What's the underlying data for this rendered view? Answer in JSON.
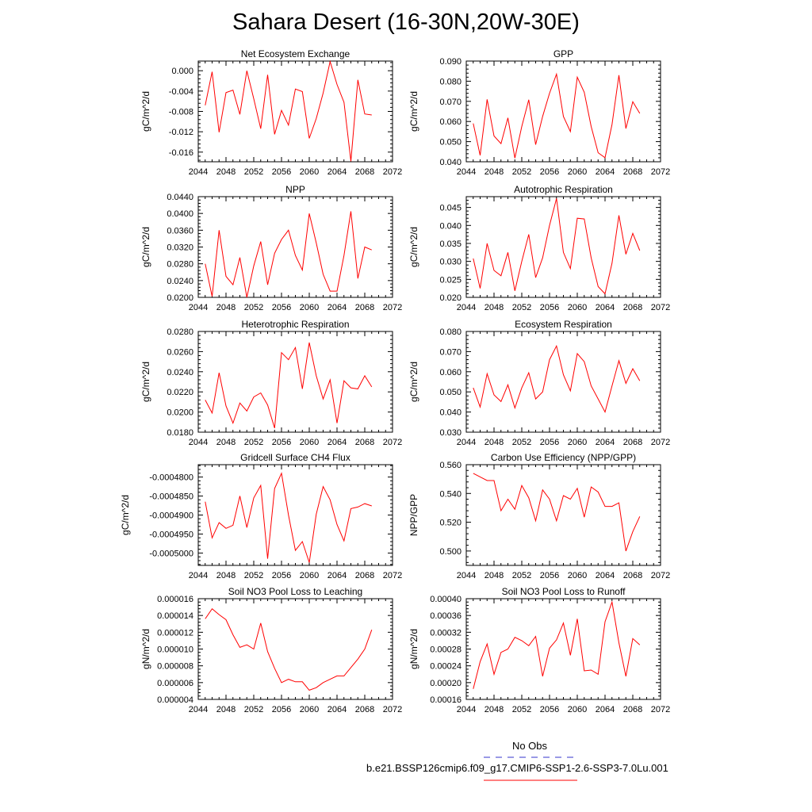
{
  "title": "Sahara Desert (16-30N,20W-30E)",
  "legend": {
    "obs_label": "No Obs",
    "obs_color": "#3333cc",
    "run_label": "b.e21.BSSP126cmip6.f09_g17.CMIP6-SSP1-2.6-SSP3-7.0Lu.001",
    "run_color": "#ff0000"
  },
  "chart_data": [
    {
      "type": "line",
      "title": "Net Ecosystem Exchange",
      "ylabel": "gC/m^2/d",
      "xlim": [
        2044,
        2072
      ],
      "xticks": [
        2044,
        2048,
        2052,
        2056,
        2060,
        2064,
        2068,
        2072
      ],
      "ylim": [
        -0.0179,
        0.0019
      ],
      "yticks": [
        0.0,
        -0.004,
        -0.008,
        -0.012,
        -0.016
      ],
      "ytick_labels": [
        "0.000",
        "-0.004",
        "-0.008",
        "-0.012",
        "-0.016"
      ],
      "color": "#ff0000",
      "x": [
        2045,
        2046,
        2047,
        2048,
        2049,
        2050,
        2051,
        2052,
        2053,
        2054,
        2055,
        2056,
        2057,
        2058,
        2059,
        2060,
        2061,
        2062,
        2063,
        2064,
        2065,
        2066,
        2067,
        2068,
        2069
      ],
      "values": [
        -0.0068,
        -0.0002,
        -0.0121,
        -0.0043,
        -0.0038,
        -0.0086,
        0.0,
        -0.0055,
        -0.0114,
        -0.0008,
        -0.0125,
        -0.0078,
        -0.0107,
        -0.0036,
        -0.0041,
        -0.0133,
        -0.0094,
        -0.0044,
        0.0018,
        -0.0027,
        -0.0062,
        -0.0178,
        -0.0018,
        -0.0085,
        -0.0087
      ]
    },
    {
      "type": "line",
      "title": "GPP",
      "ylabel": "gC/m^2/d",
      "xlim": [
        2044,
        2072
      ],
      "xticks": [
        2044,
        2048,
        2052,
        2056,
        2060,
        2064,
        2068,
        2072
      ],
      "ylim": [
        0.04,
        0.09
      ],
      "yticks": [
        0.04,
        0.05,
        0.06,
        0.07,
        0.08,
        0.09
      ],
      "ytick_labels": [
        "0.040",
        "0.050",
        "0.060",
        "0.070",
        "0.080",
        "0.090"
      ],
      "color": "#ff0000",
      "x": [
        2045,
        2046,
        2047,
        2048,
        2049,
        2050,
        2051,
        2052,
        2053,
        2054,
        2055,
        2056,
        2057,
        2058,
        2059,
        2060,
        2061,
        2062,
        2063,
        2064,
        2065,
        2066,
        2067,
        2068,
        2069
      ],
      "values": [
        0.059,
        0.0432,
        0.071,
        0.0528,
        0.049,
        0.0618,
        0.0418,
        0.0575,
        0.0708,
        0.0485,
        0.0625,
        0.074,
        0.0835,
        0.0625,
        0.055,
        0.082,
        0.0745,
        0.0575,
        0.0445,
        0.042,
        0.0585,
        0.083,
        0.0565,
        0.0698,
        0.064
      ]
    },
    {
      "type": "line",
      "title": "NPP",
      "ylabel": "gC/m^2/d",
      "xlim": [
        2044,
        2072
      ],
      "xticks": [
        2044,
        2048,
        2052,
        2056,
        2060,
        2064,
        2068,
        2072
      ],
      "ylim": [
        0.02,
        0.044
      ],
      "yticks": [
        0.02,
        0.024,
        0.028,
        0.032,
        0.036,
        0.04,
        0.044
      ],
      "ytick_labels": [
        "0.0200",
        "0.0240",
        "0.0280",
        "0.0320",
        "0.0360",
        "0.0400",
        "0.0440"
      ],
      "color": "#ff0000",
      "x": [
        2045,
        2046,
        2047,
        2048,
        2049,
        2050,
        2051,
        2052,
        2053,
        2054,
        2055,
        2056,
        2057,
        2058,
        2059,
        2060,
        2061,
        2062,
        2063,
        2064,
        2065,
        2066,
        2067,
        2068,
        2069
      ],
      "values": [
        0.028,
        0.0202,
        0.036,
        0.025,
        0.023,
        0.0295,
        0.02,
        0.0275,
        0.0333,
        0.023,
        0.0305,
        0.0338,
        0.036,
        0.03,
        0.0265,
        0.04,
        0.033,
        0.0255,
        0.0215,
        0.0215,
        0.03,
        0.0405,
        0.0245,
        0.032,
        0.0313
      ]
    },
    {
      "type": "line",
      "title": "Autotrophic Respiration",
      "ylabel": "gC/m^2/d",
      "xlim": [
        2044,
        2072
      ],
      "xticks": [
        2044,
        2048,
        2052,
        2056,
        2060,
        2064,
        2068,
        2072
      ],
      "ylim": [
        0.02,
        0.048
      ],
      "yticks": [
        0.02,
        0.025,
        0.03,
        0.035,
        0.04,
        0.045
      ],
      "ytick_labels": [
        "0.020",
        "0.025",
        "0.030",
        "0.035",
        "0.040",
        "0.045"
      ],
      "color": "#ff0000",
      "x": [
        2045,
        2046,
        2047,
        2048,
        2049,
        2050,
        2051,
        2052,
        2053,
        2054,
        2055,
        2056,
        2057,
        2058,
        2059,
        2060,
        2061,
        2062,
        2063,
        2064,
        2065,
        2066,
        2067,
        2068,
        2069
      ],
      "values": [
        0.0308,
        0.0225,
        0.035,
        0.0275,
        0.026,
        0.0325,
        0.0218,
        0.03,
        0.0375,
        0.0255,
        0.031,
        0.04,
        0.0475,
        0.0325,
        0.028,
        0.042,
        0.0418,
        0.031,
        0.023,
        0.021,
        0.0295,
        0.0428,
        0.032,
        0.0378,
        0.033
      ]
    },
    {
      "type": "line",
      "title": "Heterotrophic Respiration",
      "ylabel": "gC/m^2/d",
      "xlim": [
        2044,
        2072
      ],
      "xticks": [
        2044,
        2048,
        2052,
        2056,
        2060,
        2064,
        2068,
        2072
      ],
      "ylim": [
        0.018,
        0.028
      ],
      "yticks": [
        0.018,
        0.02,
        0.022,
        0.024,
        0.026,
        0.028
      ],
      "ytick_labels": [
        "0.0180",
        "0.0200",
        "0.0220",
        "0.0240",
        "0.0260",
        "0.0280"
      ],
      "color": "#ff0000",
      "x": [
        2045,
        2046,
        2047,
        2048,
        2049,
        2050,
        2051,
        2052,
        2053,
        2054,
        2055,
        2056,
        2057,
        2058,
        2059,
        2060,
        2061,
        2062,
        2063,
        2064,
        2065,
        2066,
        2067,
        2068,
        2069
      ],
      "values": [
        0.0212,
        0.0199,
        0.0239,
        0.0206,
        0.0189,
        0.0209,
        0.0201,
        0.0215,
        0.0219,
        0.0207,
        0.0184,
        0.0259,
        0.0252,
        0.0264,
        0.0223,
        0.0269,
        0.0236,
        0.0213,
        0.0232,
        0.0189,
        0.0231,
        0.0224,
        0.0223,
        0.0236,
        0.0225
      ]
    },
    {
      "type": "line",
      "title": "Ecosystem Respiration",
      "ylabel": "gC/m^2/d",
      "xlim": [
        2044,
        2072
      ],
      "xticks": [
        2044,
        2048,
        2052,
        2056,
        2060,
        2064,
        2068,
        2072
      ],
      "ylim": [
        0.03,
        0.08
      ],
      "yticks": [
        0.03,
        0.04,
        0.05,
        0.06,
        0.07,
        0.08
      ],
      "ytick_labels": [
        "0.030",
        "0.040",
        "0.050",
        "0.060",
        "0.070",
        "0.080"
      ],
      "color": "#ff0000",
      "x": [
        2045,
        2046,
        2047,
        2048,
        2049,
        2050,
        2051,
        2052,
        2053,
        2054,
        2055,
        2056,
        2057,
        2058,
        2059,
        2060,
        2061,
        2062,
        2063,
        2064,
        2065,
        2066,
        2067,
        2068,
        2069
      ],
      "values": [
        0.052,
        0.0425,
        0.059,
        0.0485,
        0.0452,
        0.0535,
        0.042,
        0.052,
        0.0595,
        0.0465,
        0.05,
        0.066,
        0.0728,
        0.0585,
        0.0505,
        0.069,
        0.065,
        0.053,
        0.0465,
        0.04,
        0.053,
        0.0655,
        0.0542,
        0.0615,
        0.0555
      ]
    },
    {
      "type": "line",
      "title": "Gridcell Surface CH4 Flux",
      "ylabel": "gC/m^2/d",
      "xlim": [
        2044,
        2072
      ],
      "xticks": [
        2044,
        2048,
        2052,
        2056,
        2060,
        2064,
        2068,
        2072
      ],
      "ylim": [
        -0.00050325,
        -0.00047675
      ],
      "yticks": [
        -0.00048,
        -0.000485,
        -0.00049,
        -0.000495,
        -0.0005
      ],
      "ytick_labels": [
        "-0.0004800",
        "-0.0004850",
        "-0.0004900",
        "-0.0004950",
        "-0.0005000"
      ],
      "color": "#ff0000",
      "x": [
        2045,
        2046,
        2047,
        2048,
        2049,
        2050,
        2051,
        2052,
        2053,
        2054,
        2055,
        2056,
        2057,
        2058,
        2059,
        2060,
        2061,
        2062,
        2063,
        2064,
        2065,
        2066,
        2067,
        2068,
        2069
      ],
      "values": [
        -0.0004865,
        -0.000496,
        -0.000492,
        -0.0004935,
        -0.0004927,
        -0.000485,
        -0.0004933,
        -0.0004855,
        -0.0004822,
        -0.0005015,
        -0.000483,
        -0.000479,
        -0.00049,
        -0.0004993,
        -0.000497,
        -0.0005025,
        -0.0004898,
        -0.0004825,
        -0.000486,
        -0.0004925,
        -0.0004968,
        -0.0004883,
        -0.0004879,
        -0.000487,
        -0.0004876
      ]
    },
    {
      "type": "line",
      "title": "Carbon Use Efficiency (NPP/GPP)",
      "ylabel": "NPP/GPP",
      "xlim": [
        2044,
        2072
      ],
      "xticks": [
        2044,
        2048,
        2052,
        2056,
        2060,
        2064,
        2068,
        2072
      ],
      "ylim": [
        0.49,
        0.56
      ],
      "yticks": [
        0.5,
        0.52,
        0.54,
        0.56
      ],
      "ytick_labels": [
        "0.500",
        "0.520",
        "0.540",
        "0.560"
      ],
      "color": "#ff0000",
      "x": [
        2045,
        2046,
        2047,
        2048,
        2049,
        2050,
        2051,
        2052,
        2053,
        2054,
        2055,
        2056,
        2057,
        2058,
        2059,
        2060,
        2061,
        2062,
        2063,
        2064,
        2065,
        2066,
        2067,
        2068,
        2069
      ],
      "values": [
        0.554,
        0.5515,
        0.549,
        0.549,
        0.528,
        0.536,
        0.529,
        0.5455,
        0.537,
        0.521,
        0.5425,
        0.536,
        0.521,
        0.5385,
        0.536,
        0.5435,
        0.5235,
        0.5445,
        0.541,
        0.531,
        0.531,
        0.5335,
        0.5,
        0.5135,
        0.524
      ]
    },
    {
      "type": "line",
      "title": "Soil NO3 Pool Loss to Leaching",
      "ylabel": "gN/m^2/d",
      "xlim": [
        2044,
        2072
      ],
      "xticks": [
        2044,
        2048,
        2052,
        2056,
        2060,
        2064,
        2068,
        2072
      ],
      "ylim": [
        4e-06,
        1.6e-05
      ],
      "yticks": [
        4e-06,
        6e-06,
        8e-06,
        1e-05,
        1.2e-05,
        1.4e-05,
        1.6e-05
      ],
      "ytick_labels": [
        "0.000004",
        "0.000006",
        "0.000008",
        "0.000010",
        "0.000012",
        "0.000014",
        "0.000016"
      ],
      "color": "#ff0000",
      "x": [
        2045,
        2046,
        2047,
        2048,
        2049,
        2050,
        2051,
        2052,
        2053,
        2054,
        2055,
        2056,
        2057,
        2058,
        2059,
        2060,
        2061,
        2062,
        2063,
        2064,
        2065,
        2066,
        2067,
        2068,
        2069
      ],
      "values": [
        1.36e-05,
        1.48e-05,
        1.41e-05,
        1.35e-05,
        1.17e-05,
        1.02e-05,
        1.05e-05,
        1e-05,
        1.31e-05,
        9.7e-06,
        7.7e-06,
        6e-06,
        6.4e-06,
        6.1e-06,
        6.1e-06,
        5.1e-06,
        5.4e-06,
        6e-06,
        6.4e-06,
        6.8e-06,
        6.8e-06,
        7.8e-06,
        8.8e-06,
        1e-05,
        1.23e-05
      ]
    },
    {
      "type": "line",
      "title": "Soil NO3 Pool Loss to Runoff",
      "ylabel": "gN/m^2/d",
      "xlim": [
        2044,
        2072
      ],
      "xticks": [
        2044,
        2048,
        2052,
        2056,
        2060,
        2064,
        2068,
        2072
      ],
      "ylim": [
        0.00016,
        0.0004
      ],
      "yticks": [
        0.00016,
        0.0002,
        0.00024,
        0.00028,
        0.00032,
        0.00036,
        0.0004
      ],
      "ytick_labels": [
        "0.00016",
        "0.00020",
        "0.00024",
        "0.00028",
        "0.00032",
        "0.00036",
        "0.00040"
      ],
      "color": "#ff0000",
      "x": [
        2045,
        2046,
        2047,
        2048,
        2049,
        2050,
        2051,
        2052,
        2053,
        2054,
        2055,
        2056,
        2057,
        2058,
        2059,
        2060,
        2061,
        2062,
        2063,
        2064,
        2065,
        2066,
        2067,
        2068,
        2069
      ],
      "values": [
        0.000185,
        0.00025,
        0.000292,
        0.00022,
        0.000272,
        0.00028,
        0.000308,
        0.0003,
        0.000288,
        0.00031,
        0.000215,
        0.000282,
        0.000302,
        0.000342,
        0.000265,
        0.000352,
        0.000228,
        0.00023,
        0.00022,
        0.000345,
        0.000392,
        0.000295,
        0.000215,
        0.000305,
        0.00029
      ]
    }
  ]
}
